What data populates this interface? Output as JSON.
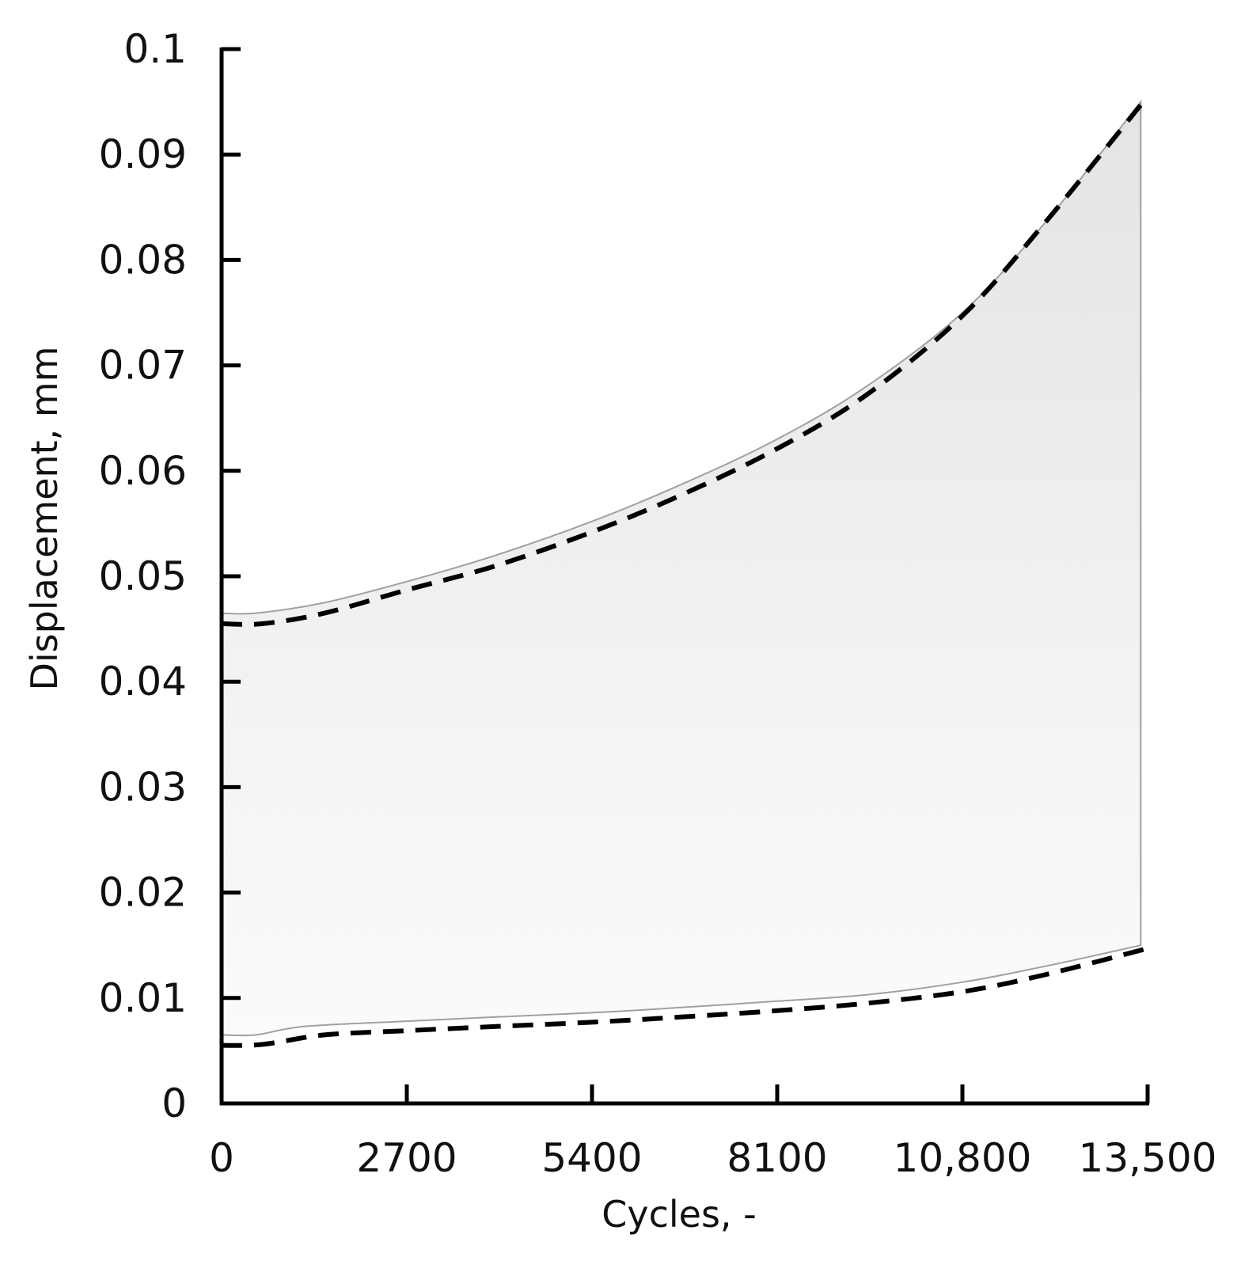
{
  "chart_data": {
    "type": "area",
    "xlabel": "Cycles, -",
    "ylabel": "Displacement, mm",
    "xlim": [
      0,
      13500
    ],
    "ylim": [
      0,
      0.1
    ],
    "x_ticks": [
      0,
      2700,
      5400,
      8100,
      10800,
      13500
    ],
    "x_tick_labels": [
      "0",
      "2700",
      "5400",
      "8100",
      "10,800",
      "13,500"
    ],
    "y_ticks": [
      0,
      0.01,
      0.02,
      0.03,
      0.04,
      0.05,
      0.06,
      0.07,
      0.08,
      0.09,
      0.1
    ],
    "y_tick_labels": [
      "0",
      "0.01",
      "0.02",
      "0.03",
      "0.04",
      "0.05",
      "0.06",
      "0.07",
      "0.08",
      "0.09",
      "0.1"
    ],
    "grid": false,
    "legend": "none",
    "band": {
      "fill_color": "#e8e9eb",
      "edge_color": "#a0a0a0",
      "upper": {
        "x": [
          0,
          500,
          1500,
          2700,
          4000,
          5400,
          6700,
          8100,
          9400,
          10800,
          12000,
          13400
        ],
        "y": [
          0.0465,
          0.0465,
          0.0475,
          0.0495,
          0.052,
          0.0552,
          0.0587,
          0.063,
          0.068,
          0.075,
          0.0835,
          0.095
        ]
      },
      "lower": {
        "x": [
          0,
          500,
          1200,
          2700,
          4000,
          5400,
          6700,
          8100,
          9400,
          10800,
          12000,
          13400
        ],
        "y": [
          0.0065,
          0.0065,
          0.0073,
          0.0078,
          0.0082,
          0.0086,
          0.0091,
          0.0097,
          0.0103,
          0.0115,
          0.013,
          0.015
        ]
      }
    },
    "series": [
      {
        "style": "dashed",
        "color": "#000000",
        "x": [
          0,
          600,
          1500,
          2700,
          4000,
          5400,
          6700,
          8100,
          9400,
          10800,
          12000,
          13500
        ],
        "y": [
          0.0455,
          0.0455,
          0.0465,
          0.0487,
          0.051,
          0.0542,
          0.0577,
          0.0621,
          0.0672,
          0.0747,
          0.0835,
          0.0955
        ]
      },
      {
        "style": "dashed",
        "color": "#000000",
        "x": [
          0,
          600,
          1500,
          2700,
          4000,
          5400,
          6700,
          8100,
          9400,
          10800,
          12000,
          13500
        ],
        "y": [
          0.0055,
          0.0056,
          0.0065,
          0.0069,
          0.0073,
          0.0077,
          0.0082,
          0.0088,
          0.0095,
          0.0106,
          0.0122,
          0.0147
        ]
      }
    ]
  }
}
